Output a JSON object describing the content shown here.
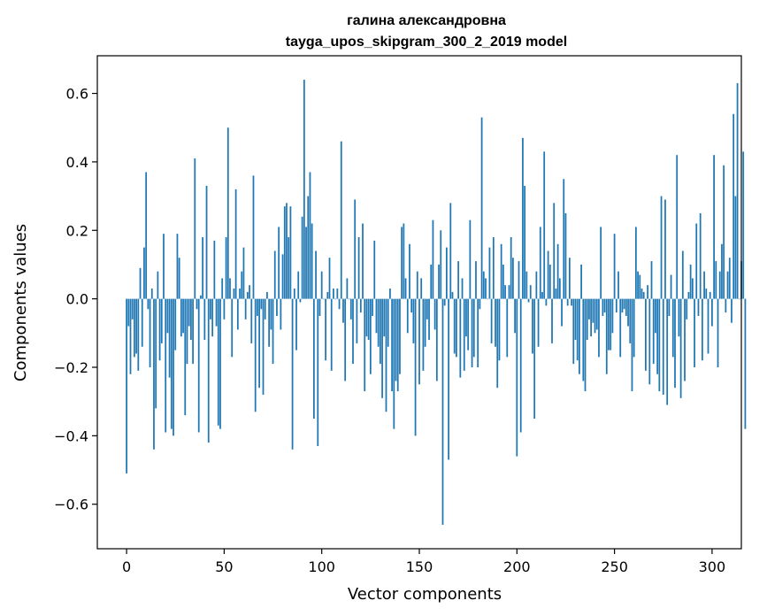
{
  "chart_data": {
    "type": "bar",
    "title_line1": "галина александровна",
    "title_line2": "tayga_upos_skipgram_300_2_2019 model",
    "xlabel": "Vector components",
    "ylabel": "Components values",
    "xlim": [
      -15,
      315
    ],
    "ylim": [
      -0.73,
      0.71
    ],
    "xticks": [
      0,
      50,
      100,
      150,
      200,
      250,
      300
    ],
    "xtick_labels": [
      "0",
      "50",
      "100",
      "150",
      "200",
      "250",
      "300"
    ],
    "yticks": [
      -0.6,
      -0.4,
      -0.2,
      0.0,
      0.2,
      0.4,
      0.6
    ],
    "ytick_labels": [
      "−0.6",
      "−0.4",
      "−0.2",
      "0.0",
      "0.2",
      "0.4",
      "0.6"
    ],
    "bar_color": "#1f77b4",
    "x_start": 0,
    "values": [
      -0.51,
      -0.08,
      -0.22,
      -0.06,
      -0.17,
      -0.16,
      -0.21,
      0.09,
      -0.14,
      0.15,
      0.37,
      -0.03,
      -0.2,
      0.03,
      -0.44,
      -0.32,
      0.08,
      -0.18,
      -0.13,
      0.19,
      -0.39,
      -0.1,
      -0.23,
      -0.38,
      -0.4,
      -0.15,
      0.19,
      0.12,
      -0.11,
      -0.1,
      -0.34,
      -0.19,
      -0.08,
      -0.12,
      -0.19,
      0.41,
      -0.03,
      -0.39,
      0.01,
      0.18,
      -0.12,
      0.33,
      -0.42,
      -0.06,
      -0.11,
      0.17,
      -0.08,
      -0.37,
      -0.38,
      0.06,
      -0.06,
      0.18,
      0.5,
      0.06,
      -0.17,
      0.03,
      0.32,
      -0.09,
      0.03,
      0.08,
      0.15,
      -0.06,
      0.02,
      0.04,
      -0.13,
      0.36,
      -0.33,
      -0.05,
      -0.26,
      -0.03,
      -0.28,
      -0.06,
      0.02,
      -0.14,
      -0.09,
      -0.19,
      0.14,
      -0.05,
      0.21,
      -0.09,
      0.13,
      0.27,
      0.28,
      0.18,
      0.27,
      -0.44,
      0.03,
      -0.15,
      0.08,
      -0.01,
      0.24,
      0.64,
      0.21,
      0.3,
      0.37,
      0.22,
      -0.35,
      0.14,
      -0.43,
      -0.05,
      0.08,
      0.0,
      -0.18,
      0.02,
      0.12,
      -0.21,
      0.03,
      0.0,
      0.03,
      -0.03,
      0.46,
      -0.07,
      -0.24,
      0.06,
      0.0,
      -0.06,
      -0.19,
      0.29,
      -0.13,
      0.18,
      -0.04,
      0.22,
      -0.27,
      -0.11,
      -0.12,
      -0.22,
      -0.05,
      0.17,
      -0.1,
      -0.14,
      -0.19,
      -0.29,
      -0.11,
      -0.33,
      -0.14,
      0.03,
      -0.27,
      -0.38,
      -0.24,
      -0.27,
      -0.22,
      0.21,
      0.22,
      0.06,
      -0.1,
      0.16,
      -0.04,
      -0.13,
      -0.4,
      0.08,
      -0.25,
      0.06,
      -0.21,
      -0.14,
      -0.06,
      -0.12,
      0.1,
      0.23,
      -0.09,
      -0.24,
      0.1,
      0.2,
      -0.66,
      -0.02,
      0.15,
      -0.47,
      0.28,
      0.02,
      -0.16,
      -0.17,
      0.11,
      -0.23,
      0.06,
      -0.21,
      -0.11,
      -0.15,
      0.23,
      -0.2,
      -0.17,
      0.11,
      -0.2,
      -0.03,
      0.53,
      0.08,
      0.06,
      0.0,
      0.15,
      -0.13,
      0.18,
      -0.14,
      -0.26,
      -0.18,
      0.16,
      0.1,
      0.04,
      -0.17,
      0.04,
      0.18,
      0.12,
      -0.1,
      -0.46,
      0.11,
      -0.39,
      0.47,
      0.33,
      0.08,
      -0.01,
      0.04,
      -0.16,
      -0.35,
      0.08,
      -0.14,
      0.21,
      0.02,
      0.43,
      -0.02,
      0.14,
      0.1,
      -0.13,
      0.28,
      0.03,
      0.16,
      0.06,
      -0.08,
      0.35,
      0.25,
      -0.02,
      0.12,
      -0.02,
      -0.19,
      -0.12,
      -0.18,
      -0.22,
      0.1,
      -0.24,
      -0.27,
      -0.12,
      -0.06,
      -0.11,
      -0.07,
      -0.1,
      -0.09,
      -0.17,
      0.21,
      -0.05,
      -0.04,
      -0.22,
      -0.15,
      -0.15,
      -0.1,
      0.19,
      -0.04,
      0.08,
      -0.17,
      -0.04,
      -0.03,
      -0.05,
      -0.08,
      -0.13,
      -0.27,
      -0.17,
      0.21,
      0.08,
      0.07,
      0.03,
      0.02,
      -0.21,
      0.04,
      -0.25,
      0.11,
      -0.19,
      -0.1,
      -0.22,
      -0.27,
      0.3,
      -0.28,
      0.29,
      -0.31,
      -0.05,
      0.07,
      -0.17,
      -0.26,
      0.42,
      -0.11,
      -0.29,
      0.14,
      -0.24,
      -0.06,
      0.02,
      0.1,
      0.06,
      -0.2,
      0.22,
      -0.05,
      0.25,
      -0.18,
      0.08,
      0.03,
      -0.16,
      0.02,
      -0.08,
      0.42,
      0.11,
      -0.2,
      0.08,
      0.16,
      0.39,
      -0.04,
      0.08,
      0.12,
      -0.07,
      0.54,
      0.3,
      0.63,
      0.0,
      0.11,
      0.43,
      -0.38
    ]
  }
}
